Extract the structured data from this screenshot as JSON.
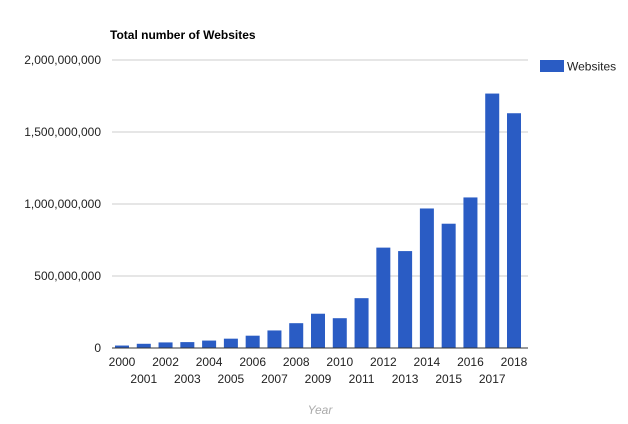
{
  "chart_data": {
    "type": "bar",
    "title": "Total number of Websites",
    "xlabel": "Year",
    "ylabel": "",
    "ylim": [
      0,
      2000000000
    ],
    "yticks": [
      0,
      500000000,
      1000000000,
      1500000000,
      2000000000
    ],
    "ytick_labels": [
      "0",
      "500,000,000",
      "1,000,000,000",
      "1,500,000,000",
      "2,000,000,000"
    ],
    "grid": true,
    "legend": "right",
    "categories": [
      "2000",
      "2001",
      "2002",
      "2003",
      "2004",
      "2005",
      "2006",
      "2007",
      "2008",
      "2009",
      "2010",
      "2011",
      "2012",
      "2013",
      "2014",
      "2015",
      "2016",
      "2017",
      "2018"
    ],
    "series": [
      {
        "name": "Websites",
        "color": "#2a5cc4",
        "values": [
          17087182,
          29254370,
          38760373,
          40912332,
          51611646,
          64780617,
          85507314,
          121892559,
          172338726,
          238027855,
          206956723,
          346004403,
          697089489,
          672985183,
          968882453,
          863105652,
          1045534808,
          1766926408,
          1630322579
        ]
      }
    ]
  }
}
